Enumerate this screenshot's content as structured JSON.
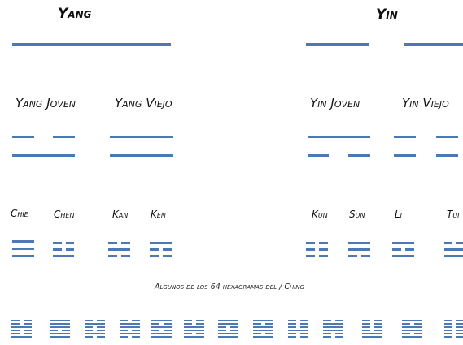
{
  "colors": {
    "line": "#4a79b6",
    "text": "#111111",
    "background": "#ffffff"
  },
  "basic": {
    "yang": "Yang",
    "yin": "Yin"
  },
  "digrams": {
    "yang_joven": "Yang Joven",
    "yang_viejo": "Yang Viejo",
    "yin_joven": "Yin Joven",
    "yin_viejo": "Yin Viejo"
  },
  "trigrams": {
    "chie": "Chie",
    "chen": "Chen",
    "kan": "Kan",
    "ken": "Ken",
    "kun": "Kun",
    "sun": "Sun",
    "li": "Li",
    "tui": "Tui"
  },
  "caption": "Algunos de los 64 hexagramas del / Ching",
  "hexagrams": [
    [
      0,
      0,
      1,
      0,
      0,
      1
    ],
    [
      1,
      1,
      1,
      0,
      1,
      1
    ],
    [
      0,
      1,
      0,
      0,
      1,
      0
    ],
    [
      0,
      1,
      1,
      0,
      1,
      0
    ],
    [
      1,
      0,
      1,
      0,
      1,
      1
    ],
    [
      0,
      0,
      1,
      1,
      0,
      1
    ],
    [
      1,
      1,
      0,
      0,
      1,
      1
    ],
    [
      1,
      0,
      1,
      1,
      0,
      1
    ],
    [
      0,
      0,
      0,
      1,
      0,
      0
    ],
    [
      0,
      1,
      1,
      1,
      0,
      0
    ],
    [
      0,
      0,
      0,
      0,
      1,
      1
    ],
    [
      1,
      0,
      1,
      1,
      0,
      1
    ],
    [
      0,
      0,
      0,
      0,
      0,
      0
    ]
  ]
}
